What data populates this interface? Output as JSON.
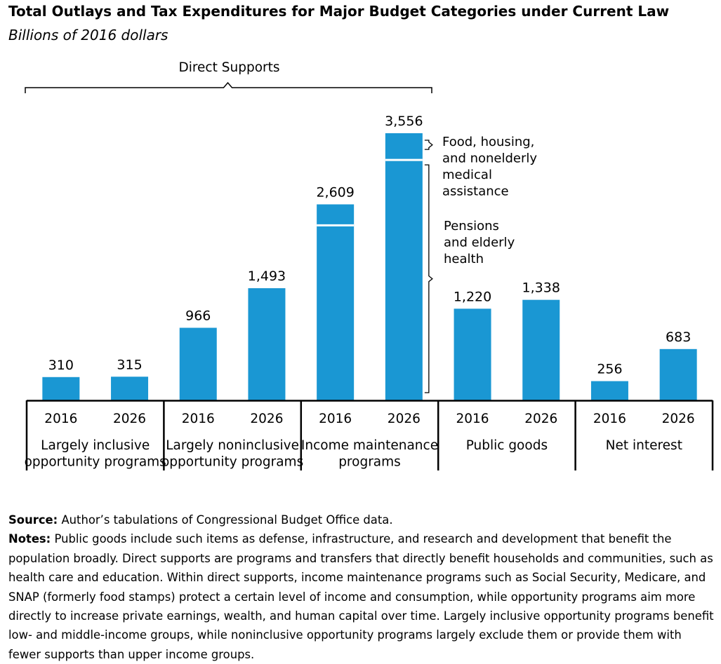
{
  "title": "Total Outlays and Tax Expenditures for Major Budget Categories under Current Law",
  "subtitle": "Billions of 2016 dollars",
  "colors": {
    "bar": "#1a97d3",
    "text": "#000000"
  },
  "chart_data": {
    "type": "bar",
    "stacked": true,
    "ylim": [
      0,
      3800
    ],
    "bracket_label": "Direct Supports",
    "groups": [
      {
        "label": "Largely inclusive opportunity programs",
        "label_lines": [
          "Largely inclusive",
          "opportunity programs"
        ]
      },
      {
        "label": "Largely noninclusive opportunity programs",
        "label_lines": [
          "Largely noninclusive",
          "opportunity programs"
        ]
      },
      {
        "label": "Income maintenance programs",
        "label_lines": [
          "Income maintenance",
          "programs"
        ]
      },
      {
        "label": "Public goods",
        "label_lines": [
          "Public goods"
        ]
      },
      {
        "label": "Net interest",
        "label_lines": [
          "Net interest"
        ]
      }
    ],
    "bars": [
      {
        "group": 0,
        "year": "2016",
        "total": 310,
        "total_label": "310"
      },
      {
        "group": 0,
        "year": "2026",
        "total": 315,
        "total_label": "315"
      },
      {
        "group": 1,
        "year": "2016",
        "total": 966,
        "total_label": "966"
      },
      {
        "group": 1,
        "year": "2026",
        "total": 1493,
        "total_label": "1,493"
      },
      {
        "group": 2,
        "year": "2016",
        "total": 2609,
        "total_label": "2,609",
        "segments": [
          2330,
          279
        ]
      },
      {
        "group": 2,
        "year": "2026",
        "total": 3556,
        "total_label": "3,556",
        "segments": [
          3200,
          356
        ]
      },
      {
        "group": 3,
        "year": "2016",
        "total": 1220,
        "total_label": "1,220"
      },
      {
        "group": 3,
        "year": "2026",
        "total": 1338,
        "total_label": "1,338"
      },
      {
        "group": 4,
        "year": "2016",
        "total": 256,
        "total_label": "256"
      },
      {
        "group": 4,
        "year": "2026",
        "total": 683,
        "total_label": "683"
      }
    ],
    "annotations": [
      {
        "name": "food-housing-annotation",
        "target": "upper",
        "lines": [
          "Food, housing,",
          "and nonelderly",
          "medical",
          "assistance"
        ]
      },
      {
        "name": "pensions-annotation",
        "target": "lower",
        "lines": [
          "Pensions",
          "and elderly",
          "health"
        ]
      }
    ]
  },
  "footer": {
    "source_label": "Source:",
    "source_text": "Author’s tabulations of Congressional Budget Office data.",
    "notes_label": "Notes:",
    "notes_text": "Public goods include such items as defense, infrastructure, and research and development that benefit the population broadly. Direct supports are programs and transfers that directly benefit households and communities, such as health care and education. Within direct supports, income maintenance programs such as Social Security, Medicare, and SNAP (formerly food stamps) protect a certain level of income and consumption, while opportunity programs aim more directly to increase private earnings, wealth, and human capital over time. Largely inclusive opportunity programs benefit low- and middle-income groups, while noninclusive opportunity programs largely exclude them or provide them with fewer supports than upper income groups."
  }
}
